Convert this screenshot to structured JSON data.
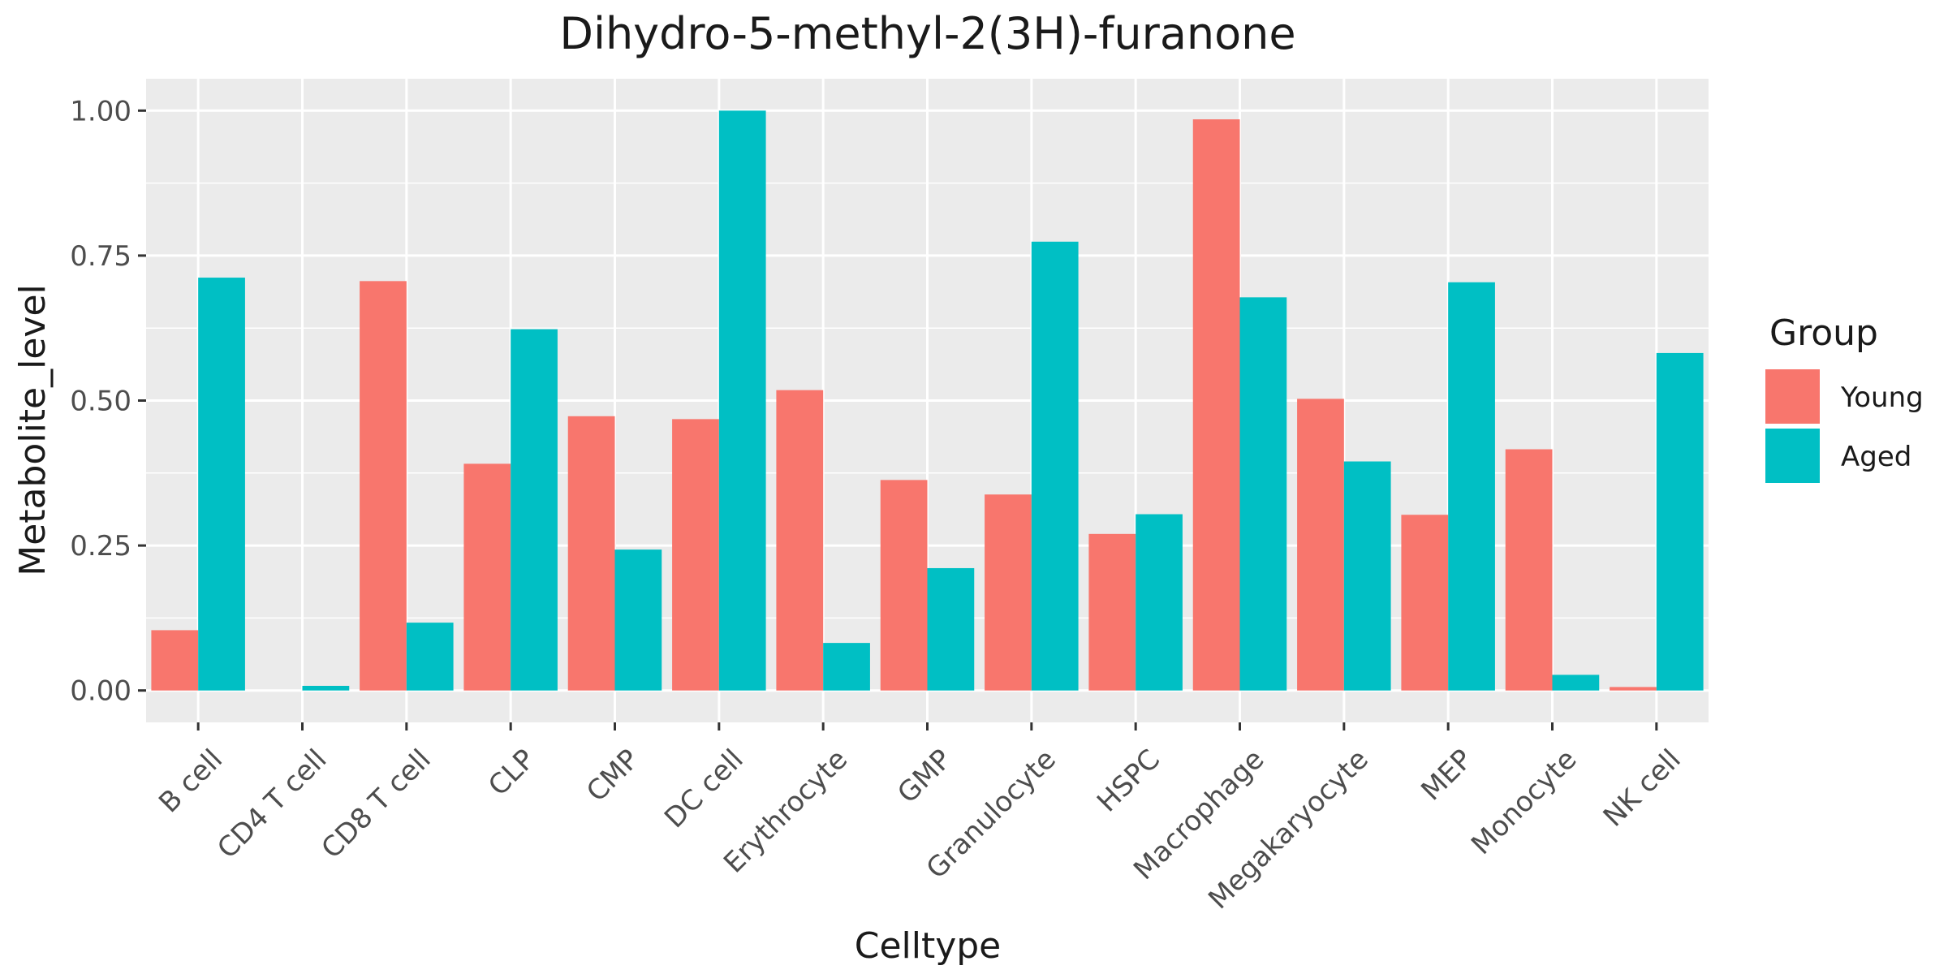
{
  "chart_data": {
    "type": "bar",
    "title": "Dihydro-5-methyl-2(3H)-furanone",
    "xlabel": "Celltype",
    "ylabel": "Metabolite_level",
    "categories": [
      "B cell",
      "CD4 T cell",
      "CD8 T cell",
      "CLP",
      "CMP",
      "DC cell",
      "Erythrocyte",
      "GMP",
      "Granulocyte",
      "HSPC",
      "Macrophage",
      "Megakaryocyte",
      "MEP",
      "Monocyte",
      "NK cell"
    ],
    "series": [
      {
        "name": "Young",
        "color": "#F8766D",
        "values": [
          0.104,
          0.0,
          0.706,
          0.391,
          0.473,
          0.468,
          0.518,
          0.363,
          0.338,
          0.27,
          0.985,
          0.503,
          0.303,
          0.416,
          0.006
        ]
      },
      {
        "name": "Aged",
        "color": "#00BFC4",
        "values": [
          0.712,
          0.008,
          0.117,
          0.623,
          0.243,
          1.0,
          0.082,
          0.211,
          0.774,
          0.304,
          0.678,
          0.395,
          0.704,
          0.027,
          0.582
        ]
      }
    ],
    "ylim": [
      -0.055,
      1.055
    ],
    "yticks": [
      0,
      0.25,
      0.5,
      0.75,
      1.0
    ],
    "ytick_labels": [
      "0.00",
      "0.25",
      "0.50",
      "0.75",
      "1.00"
    ],
    "grid": true,
    "panel_background": "#EBEBEB",
    "legend": {
      "title": "Group",
      "position": "right"
    }
  }
}
